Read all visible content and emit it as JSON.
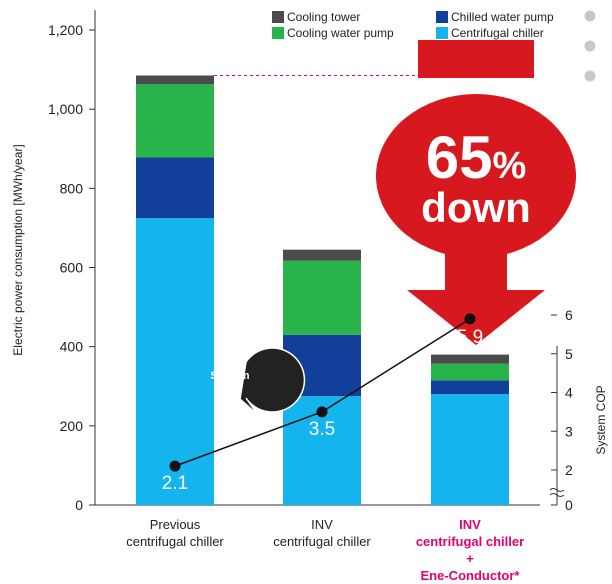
{
  "chart_data": {
    "type": "bar",
    "stacked": true,
    "ylabel": "Electric power consumption [MWh/year]",
    "ylim": [
      0,
      1200
    ],
    "yticks": [
      "0",
      "200",
      "400",
      "600",
      "800",
      "1,000",
      "1,200"
    ],
    "y2label": "System COP",
    "y2ticks": [
      "0",
      "2",
      "3",
      "4",
      "5",
      "6"
    ],
    "categories": [
      [
        "Previous",
        "centrifugal chiller"
      ],
      [
        "INV",
        "centrifugal chiller"
      ],
      [
        "INV",
        "centrifugal chiller",
        "+",
        "Ene-Conductor*"
      ]
    ],
    "series": [
      {
        "name": "Centrifugal chiller",
        "color": "#14b4ee",
        "values": [
          725,
          275,
          280
        ]
      },
      {
        "name": "Chilled water pump",
        "color": "#123f9a",
        "values": [
          153,
          155,
          35
        ]
      },
      {
        "name": "Cooling water pump",
        "color": "#28b34b",
        "values": [
          185,
          187,
          42
        ]
      },
      {
        "name": "Cooling tower",
        "color": "#4a4b4d",
        "values": [
          22,
          28,
          23
        ]
      }
    ],
    "legend_order": [
      "Cooling tower",
      "Chilled water pump",
      "Cooling water pump",
      "Centrifugal chiller"
    ],
    "system_cop": {
      "values": [
        2.1,
        3.5,
        5.9
      ],
      "labels": [
        "2.1",
        "3.5",
        "5.9"
      ],
      "bubble": [
        "System",
        "COP"
      ]
    },
    "annotation": {
      "line1": "65%",
      "line1_num": "65",
      "line1_pct": "%",
      "line2": "down"
    },
    "highlight_color": "#e4006f",
    "arrow_color": "#d7191f"
  }
}
